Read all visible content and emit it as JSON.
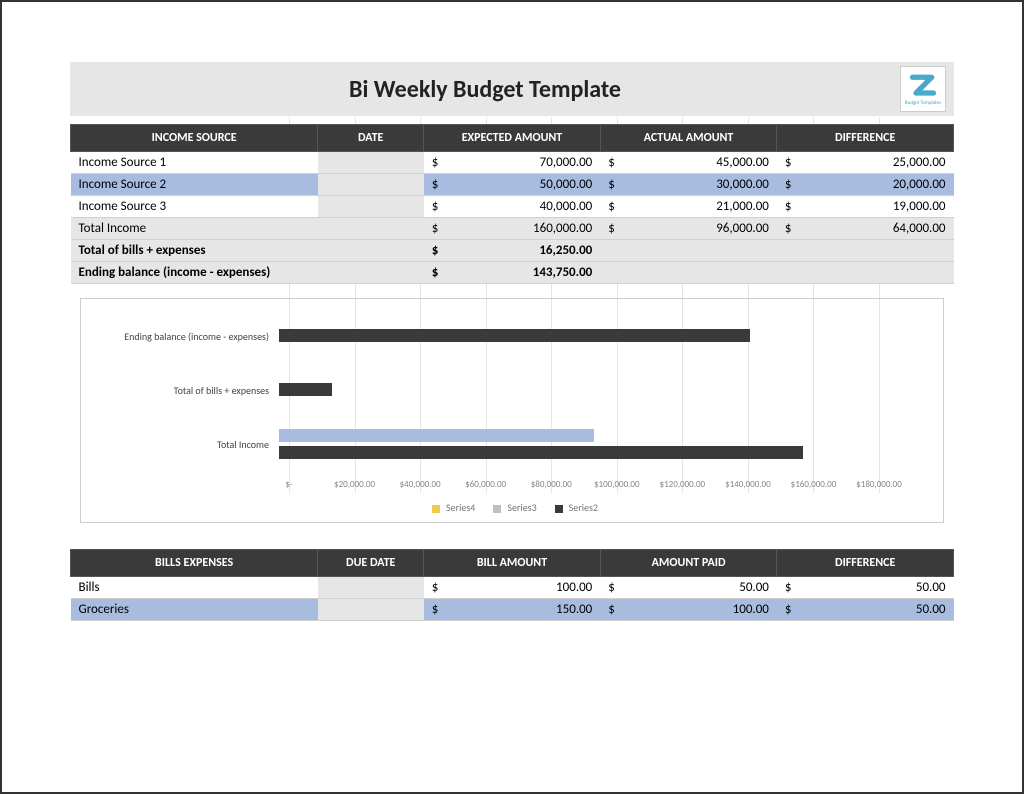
{
  "title": "Bi Weekly Budget Template",
  "logo": {
    "letter": "Z",
    "sub": "Budget Templates",
    "stroke": "#4aa8c9"
  },
  "income": {
    "headers": [
      "INCOME SOURCE",
      "DATE",
      "EXPECTED AMOUNT",
      "ACTUAL AMOUNT",
      "DIFFERENCE"
    ],
    "col_widths": [
      "28%",
      "12%",
      "20%",
      "20%",
      "20%"
    ],
    "rows": [
      {
        "label": "Income Source 1",
        "date": "",
        "expected": "70,000.00",
        "actual": "45,000.00",
        "diff": "25,000.00",
        "hl": false
      },
      {
        "label": "Income Source 2",
        "date": "",
        "expected": "50,000.00",
        "actual": "30,000.00",
        "diff": "20,000.00",
        "hl": true
      },
      {
        "label": "Income Source 3",
        "date": "",
        "expected": "40,000.00",
        "actual": "21,000.00",
        "diff": "19,000.00",
        "hl": false
      }
    ],
    "total": {
      "label": "Total Income",
      "expected": "160,000.00",
      "actual": "96,000.00",
      "diff": "64,000.00"
    },
    "bills_total": {
      "label": "Total of bills + expenses",
      "value": "16,250.00"
    },
    "ending": {
      "label": "Ending balance (income - expenses)",
      "value": "143,750.00"
    }
  },
  "chart": {
    "type": "bar-horizontal",
    "max": 180000,
    "categories": [
      {
        "label": "Ending balance (income - expenses)",
        "bars": [
          {
            "value": 143750,
            "color": "#3a3a3a",
            "pos": 0
          }
        ]
      },
      {
        "label": "Total of bills + expenses",
        "bars": [
          {
            "value": 16250,
            "color": "#3a3a3a",
            "pos": 0
          }
        ]
      },
      {
        "label": "Total Income",
        "bars": [
          {
            "value": 96000,
            "color": "#a8bce0",
            "pos": 0
          },
          {
            "value": 160000,
            "color": "#3a3a3a",
            "pos": 1
          }
        ]
      }
    ],
    "ticks": [
      "$-",
      "$20,000.00",
      "$40,000.00",
      "$60,000.00",
      "$80,000.00",
      "$100,000.00",
      "$120,000.00",
      "$140,000.00",
      "$160,000.00",
      "$180,000.00"
    ],
    "legend": [
      {
        "label": "Series4",
        "color": "#f2c94c"
      },
      {
        "label": "Series3",
        "color": "#bfbfbf"
      },
      {
        "label": "Series2",
        "color": "#3a3a3a"
      }
    ],
    "grid_color": "#e4e4e4"
  },
  "bills": {
    "headers": [
      "BILLS EXPENSES",
      "DUE DATE",
      "BILL AMOUNT",
      "AMOUNT PAID",
      "DIFFERENCE"
    ],
    "col_widths": [
      "28%",
      "12%",
      "20%",
      "20%",
      "20%"
    ],
    "rows": [
      {
        "label": "Bills",
        "date": "",
        "amount": "100.00",
        "paid": "50.00",
        "diff": "50.00",
        "hl": false
      },
      {
        "label": "Groceries",
        "date": "",
        "amount": "150.00",
        "paid": "100.00",
        "diff": "50.00",
        "hl": true
      }
    ]
  },
  "currency": "$"
}
